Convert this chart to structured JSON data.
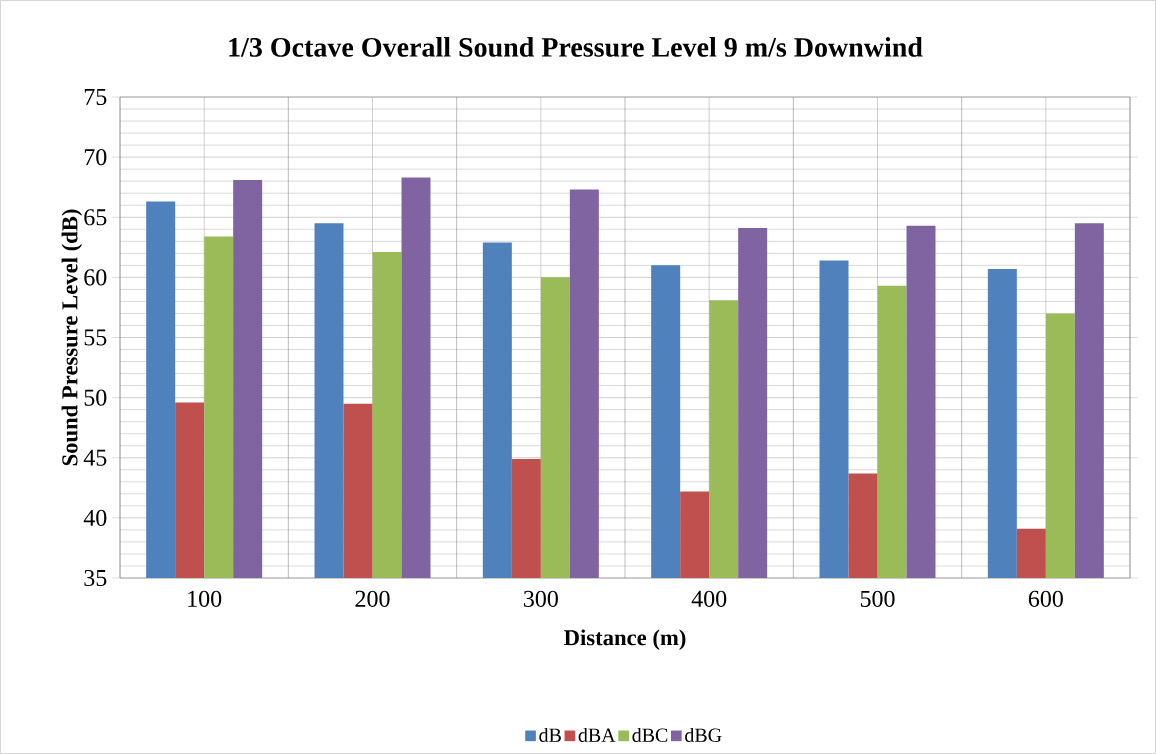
{
  "chart_data": {
    "type": "bar",
    "title": "1/3 Octave Overall Sound Pressure Level 9 m/s Downwind",
    "xlabel": "Distance (m)",
    "ylabel": "Sound Pressure Level (dB)",
    "categories": [
      "100",
      "200",
      "300",
      "400",
      "500",
      "600"
    ],
    "series": [
      {
        "name": "dB",
        "color": "#4f81bd",
        "values": [
          66.3,
          64.5,
          62.9,
          61.0,
          61.4,
          60.7
        ]
      },
      {
        "name": "dBA",
        "color": "#c0504d",
        "values": [
          49.6,
          49.5,
          44.9,
          42.2,
          43.7,
          39.1
        ]
      },
      {
        "name": "dBC",
        "color": "#9bbb59",
        "values": [
          63.4,
          62.1,
          60.0,
          58.1,
          59.3,
          57.0
        ]
      },
      {
        "name": "dBG",
        "color": "#8064a2",
        "values": [
          68.1,
          68.3,
          67.3,
          64.1,
          64.3,
          64.5
        ]
      }
    ],
    "ylim": [
      35,
      75
    ],
    "yticks": [
      35,
      40,
      45,
      50,
      55,
      60,
      65,
      70,
      75
    ],
    "grid": true,
    "legend": "bottom"
  }
}
